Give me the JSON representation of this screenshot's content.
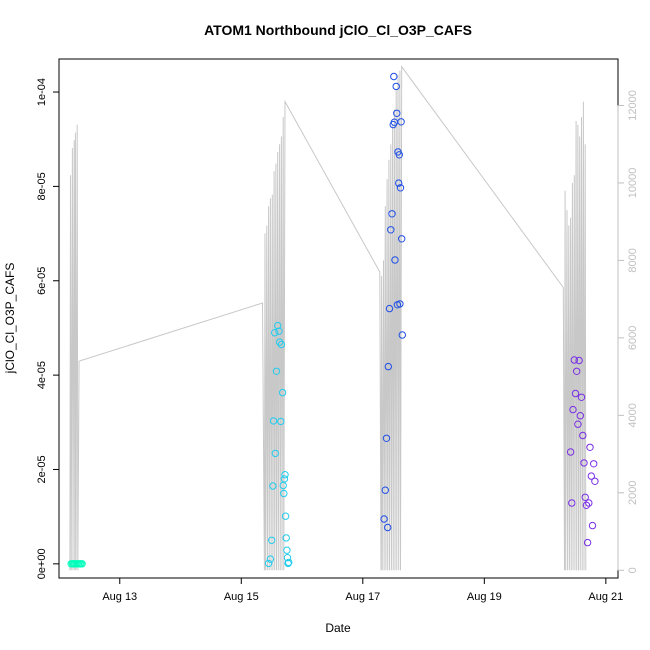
{
  "chart_data": {
    "type": "scatter",
    "title": "ATOM1 Northbound jClO_Cl_O3P_CAFS",
    "xlabel": "Date",
    "ylabel": "jClO_Cl_O3P_CAFS",
    "x_axis": {
      "unit": "days since Aug 12 00:00",
      "range": [
        12.0,
        21.2
      ],
      "ticks": [
        {
          "value": 13,
          "label": "Aug 13"
        },
        {
          "value": 15,
          "label": "Aug 15"
        },
        {
          "value": 17,
          "label": "Aug 17"
        },
        {
          "value": 19,
          "label": "Aug 19"
        },
        {
          "value": 21,
          "label": "Aug 21"
        }
      ]
    },
    "y_axis": {
      "range": [
        -3e-06,
        0.000107
      ],
      "ticks": [
        {
          "value": 0,
          "label": "0e+00"
        },
        {
          "value": 2e-05,
          "label": "2e-05"
        },
        {
          "value": 4e-05,
          "label": "4e-05"
        },
        {
          "value": 6e-05,
          "label": "6e-05"
        },
        {
          "value": 8e-05,
          "label": "8e-05"
        },
        {
          "value": 0.0001,
          "label": "1e-04"
        }
      ]
    },
    "y2_axis": {
      "range": [
        -200,
        13200
      ],
      "ticks": [
        0,
        2000,
        4000,
        6000,
        8000,
        10000,
        12000
      ],
      "color": "#c0c0c0"
    },
    "grid": false,
    "series": [
      {
        "color": "#00ffbb",
        "x": [
          12.2,
          12.22,
          12.24,
          12.26,
          12.28,
          12.3,
          12.32,
          12.34,
          12.36,
          12.38
        ],
        "y": [
          0,
          0,
          0,
          0,
          0,
          0,
          0,
          0,
          0,
          0
        ]
      },
      {
        "color": "#22ccee",
        "x": [
          15.45,
          15.48,
          15.5,
          15.52,
          15.53,
          15.55,
          15.56,
          15.58,
          15.6,
          15.62,
          15.63,
          15.65,
          15.66,
          15.68,
          15.69,
          15.7,
          15.71,
          15.72,
          15.73,
          15.74,
          15.75,
          15.76,
          15.77,
          15.78
        ],
        "y": [
          1e-07,
          1e-06,
          5e-06,
          1.65e-05,
          3.03e-05,
          4.9e-05,
          2.34e-05,
          4.08e-05,
          5.05e-05,
          4.93e-05,
          4.7e-05,
          3.02e-05,
          4.65e-05,
          3.63e-05,
          1.66e-05,
          1.49e-05,
          1.8e-05,
          1.89e-05,
          1.01e-05,
          5.5e-06,
          2.9e-06,
          1.3e-06,
          1e-07,
          3e-07
        ]
      },
      {
        "color": "#1f4fe6",
        "x": [
          17.35,
          17.37,
          17.39,
          17.41,
          17.42,
          17.44,
          17.46,
          17.48,
          17.5,
          17.51,
          17.52,
          17.53,
          17.55,
          17.56,
          17.57,
          17.58,
          17.59,
          17.6,
          17.61,
          17.62,
          17.63,
          17.64,
          17.65
        ],
        "y": [
          9.5e-06,
          1.56e-05,
          2.66e-05,
          7.7e-06,
          4.18e-05,
          5.41e-05,
          7.08e-05,
          7.42e-05,
          9.31e-05,
          0.0001033,
          9.36e-05,
          6.44e-05,
          0.0001012,
          9.55e-05,
          5.49e-05,
          8.73e-05,
          8.07e-05,
          8.67e-05,
          5.51e-05,
          7.97e-05,
          9.37e-05,
          6.89e-05,
          4.85e-05
        ]
      },
      {
        "color": "#7a2ee6",
        "x": [
          20.42,
          20.44,
          20.46,
          20.48,
          20.5,
          20.52,
          20.54,
          20.56,
          20.58,
          20.6,
          20.62,
          20.64,
          20.66,
          20.68,
          20.7,
          20.72,
          20.74,
          20.76,
          20.78,
          20.8,
          20.82
        ],
        "y": [
          2.37e-05,
          1.29e-05,
          3.27e-05,
          4.32e-05,
          3.61e-05,
          4.08e-05,
          2.96e-05,
          4.31e-05,
          3.14e-05,
          3.53e-05,
          2.72e-05,
          2.14e-05,
          1.41e-05,
          1.24e-05,
          4.5e-06,
          1.29e-05,
          2.47e-05,
          1.86e-05,
          8.1e-06,
          2.12e-05,
          1.75e-05
        ]
      }
    ],
    "secondary_series": {
      "color": "#c8c8c8",
      "axis": "right",
      "style": "line",
      "points": [
        [
          12.18,
          0
        ],
        [
          12.19,
          10200
        ],
        [
          12.2,
          0
        ],
        [
          12.22,
          10900
        ],
        [
          12.23,
          0
        ],
        [
          12.25,
          11100
        ],
        [
          12.26,
          0
        ],
        [
          12.27,
          11300
        ],
        [
          12.28,
          0
        ],
        [
          12.3,
          11500
        ],
        [
          12.31,
          0
        ],
        [
          12.33,
          5400
        ],
        [
          15.35,
          6900
        ],
        [
          15.38,
          0
        ],
        [
          15.39,
          8700
        ],
        [
          15.4,
          0
        ],
        [
          15.42,
          8900
        ],
        [
          15.43,
          0
        ],
        [
          15.45,
          9400
        ],
        [
          15.46,
          0
        ],
        [
          15.48,
          9600
        ],
        [
          15.49,
          0
        ],
        [
          15.51,
          9700
        ],
        [
          15.52,
          0
        ],
        [
          15.54,
          10300
        ],
        [
          15.55,
          0
        ],
        [
          15.57,
          10500
        ],
        [
          15.58,
          0
        ],
        [
          15.6,
          10800
        ],
        [
          15.61,
          0
        ],
        [
          15.63,
          11000
        ],
        [
          15.64,
          0
        ],
        [
          15.66,
          11200
        ],
        [
          15.67,
          0
        ],
        [
          15.69,
          11700
        ],
        [
          15.7,
          0
        ],
        [
          15.72,
          12100
        ],
        [
          17.28,
          7700
        ],
        [
          17.3,
          0
        ],
        [
          17.31,
          7600
        ],
        [
          17.32,
          0
        ],
        [
          17.34,
          8000
        ],
        [
          17.35,
          0
        ],
        [
          17.37,
          9400
        ],
        [
          17.38,
          0
        ],
        [
          17.4,
          10100
        ],
        [
          17.41,
          0
        ],
        [
          17.43,
          10600
        ],
        [
          17.44,
          0
        ],
        [
          17.46,
          11000
        ],
        [
          17.47,
          0
        ],
        [
          17.49,
          11500
        ],
        [
          17.5,
          0
        ],
        [
          17.52,
          11900
        ],
        [
          17.53,
          0
        ],
        [
          17.55,
          12400
        ],
        [
          17.56,
          0
        ],
        [
          17.58,
          12800
        ],
        [
          17.59,
          0
        ],
        [
          17.61,
          12900
        ],
        [
          17.62,
          0
        ],
        [
          17.64,
          13000
        ],
        [
          20.3,
          7300
        ],
        [
          20.32,
          0
        ],
        [
          20.33,
          9800
        ],
        [
          20.34,
          0
        ],
        [
          20.36,
          9300
        ],
        [
          20.37,
          0
        ],
        [
          20.39,
          8900
        ],
        [
          20.4,
          0
        ],
        [
          20.42,
          9100
        ],
        [
          20.43,
          0
        ],
        [
          20.45,
          10000
        ],
        [
          20.46,
          0
        ],
        [
          20.48,
          10200
        ],
        [
          20.49,
          0
        ],
        [
          20.51,
          11600
        ],
        [
          20.52,
          0
        ],
        [
          20.54,
          11500
        ],
        [
          20.55,
          0
        ],
        [
          20.57,
          11200
        ],
        [
          20.58,
          0
        ],
        [
          20.6,
          11700
        ],
        [
          20.61,
          0
        ],
        [
          20.63,
          12100
        ],
        [
          20.64,
          0
        ],
        [
          20.66,
          11000
        ],
        [
          20.67,
          0
        ]
      ]
    }
  }
}
